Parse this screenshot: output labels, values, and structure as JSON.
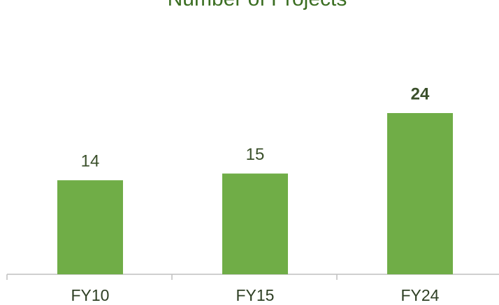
{
  "chart_data": {
    "type": "bar",
    "title": "Number of Projects",
    "categories": [
      "FY10",
      "FY15",
      "FY24"
    ],
    "values": [
      14,
      15,
      24
    ],
    "color": "#70ad47"
  }
}
